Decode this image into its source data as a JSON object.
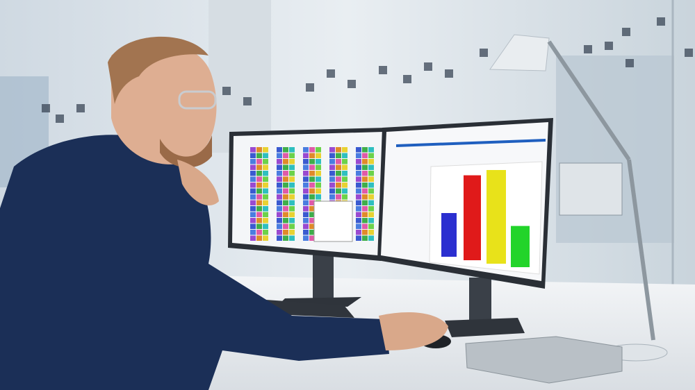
{
  "scene": {
    "background_color": "#dfe6ec",
    "sweater_color": "#1b2f57",
    "desk_color": "#eef1f4",
    "monitor_frame_color": "#2a2f36"
  },
  "screen_chart": {
    "type": "bar",
    "relative_values": [
      0.35,
      0.68,
      0.75,
      0.33
    ],
    "colors": [
      "#2b2fd0",
      "#e01a1a",
      "#e8e21a",
      "#22d42a"
    ]
  },
  "heatmap_colors": [
    "#3fae4a",
    "#e8d232",
    "#4a7de0",
    "#e05aa8",
    "#2fbfbf",
    "#9a4ad0",
    "#e08a2a",
    "#6cd24a",
    "#3a5ad0"
  ]
}
